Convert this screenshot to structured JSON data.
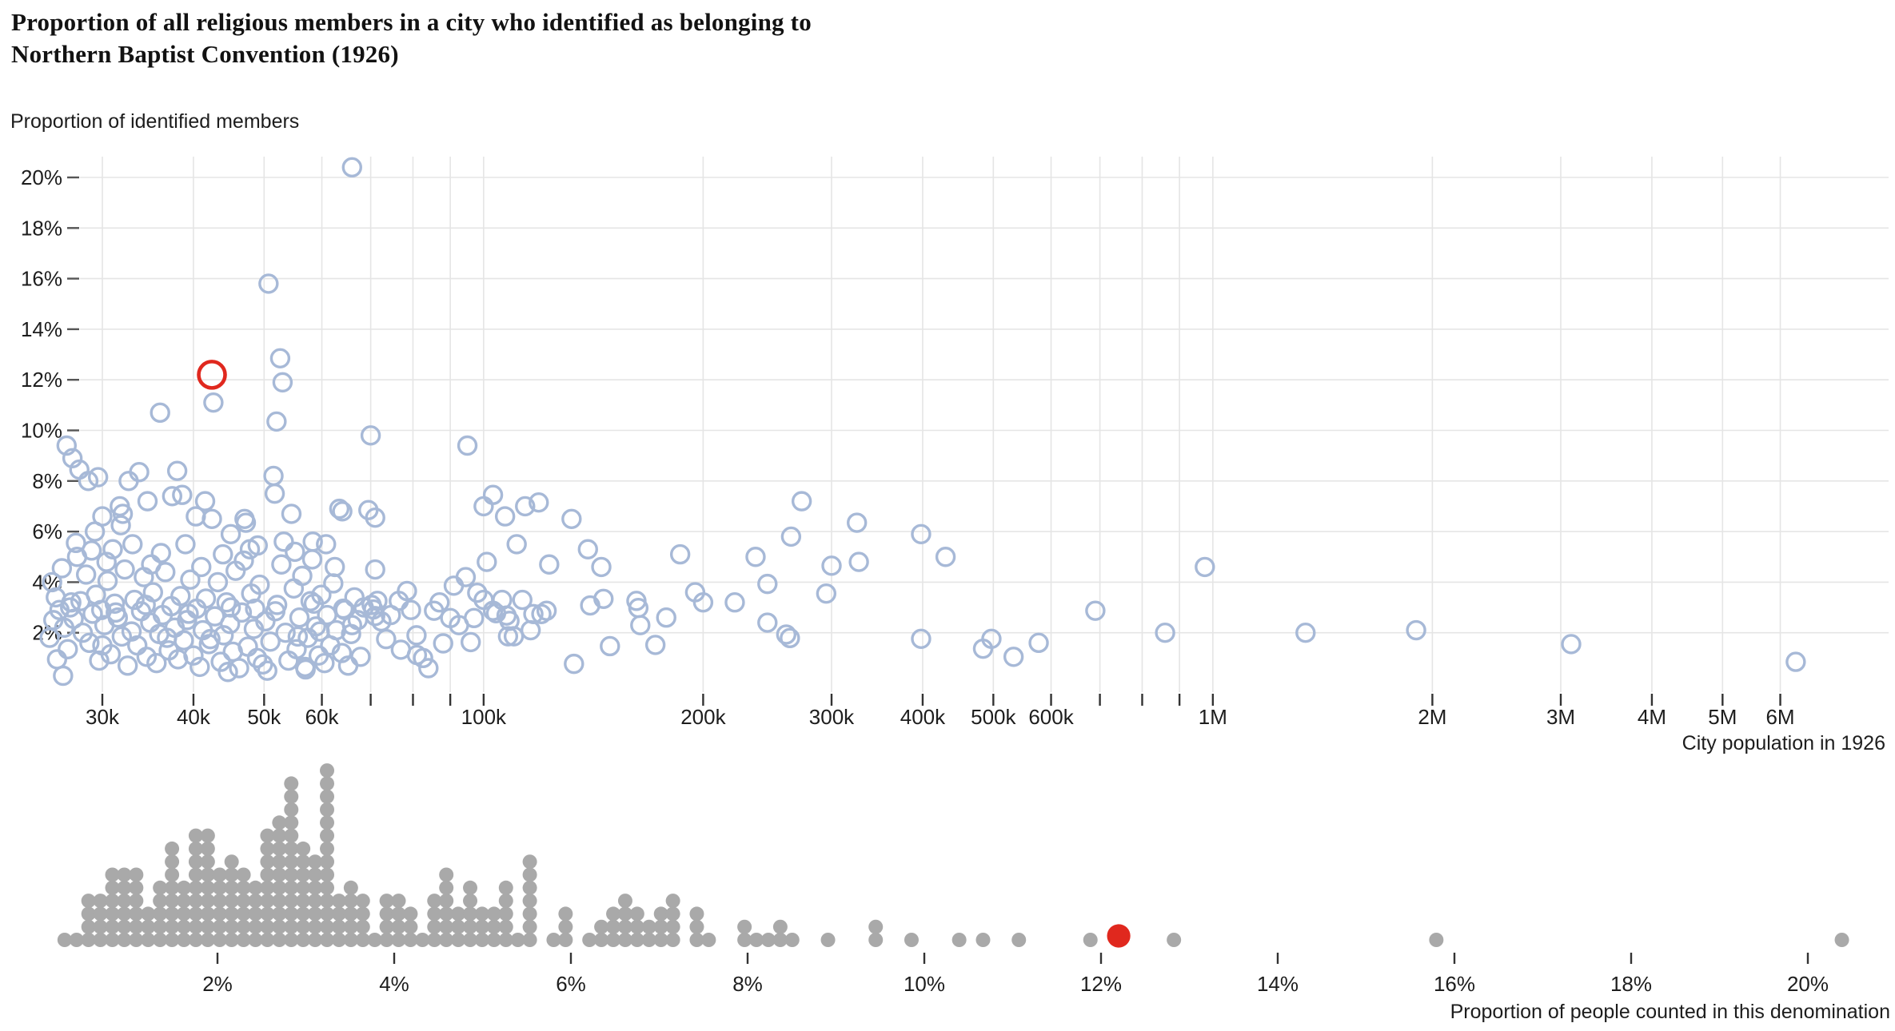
{
  "title": {
    "line1": "Proportion of all religious members in a city who identified as belonging to",
    "line2": "Northern Baptist Convention (1926)"
  },
  "top_chart": {
    "y_axis_label": "Proportion of identified members",
    "x_axis_label": "City population in 1926",
    "y_ticks": [
      {
        "value": 2,
        "label": "2%"
      },
      {
        "value": 4,
        "label": "4%"
      },
      {
        "value": 6,
        "label": "6%"
      },
      {
        "value": 8,
        "label": "8%"
      },
      {
        "value": 10,
        "label": "10%"
      },
      {
        "value": 12,
        "label": "12%"
      },
      {
        "value": 14,
        "label": "14%"
      },
      {
        "value": 16,
        "label": "16%"
      },
      {
        "value": 18,
        "label": "18%"
      },
      {
        "value": 20,
        "label": "20%"
      }
    ],
    "x_ticks": [
      {
        "value": 30000,
        "label": "30k"
      },
      {
        "value": 40000,
        "label": "40k"
      },
      {
        "value": 50000,
        "label": "50k"
      },
      {
        "value": 60000,
        "label": "60k"
      },
      {
        "value": 100000,
        "label": "100k"
      },
      {
        "value": 200000,
        "label": "200k"
      },
      {
        "value": 300000,
        "label": "300k"
      },
      {
        "value": 400000,
        "label": "400k"
      },
      {
        "value": 500000,
        "label": "500k"
      },
      {
        "value": 600000,
        "label": "600k"
      },
      {
        "value": 1000000,
        "label": "1M"
      },
      {
        "value": 2000000,
        "label": "2M"
      },
      {
        "value": 3000000,
        "label": "3M"
      },
      {
        "value": 4000000,
        "label": "4M"
      },
      {
        "value": 5000000,
        "label": "5M"
      },
      {
        "value": 6000000,
        "label": "6M"
      }
    ],
    "x_minor_ticks": [
      70000,
      80000,
      90000,
      700000,
      800000,
      900000
    ]
  },
  "bottom_chart": {
    "x_axis_label": "Proportion of people counted in this denomination",
    "x_ticks": [
      {
        "value": 2,
        "label": "2%"
      },
      {
        "value": 4,
        "label": "4%"
      },
      {
        "value": 6,
        "label": "6%"
      },
      {
        "value": 8,
        "label": "8%"
      },
      {
        "value": 10,
        "label": "10%"
      },
      {
        "value": 12,
        "label": "12%"
      },
      {
        "value": 14,
        "label": "14%"
      },
      {
        "value": 16,
        "label": "16%"
      },
      {
        "value": 18,
        "label": "18%"
      },
      {
        "value": 20,
        "label": "20%"
      }
    ]
  },
  "colors": {
    "point_stroke": "#a7b9d7",
    "highlight": "#e0281e",
    "dot_fill": "#a9a9a9",
    "gridline": "#e5e5e5",
    "tick": "#333333",
    "text": "#1d1d1d",
    "title": "#121212"
  },
  "chart_data": {
    "type": "scatter",
    "description": "Top: scatter of cities, x = city population 1926 (log scale, 25k-7M), y = % of religious members identifying as Northern Baptist Convention (0-20.9%). Bottom: one-dimensional dot-strip histogram of the same proportion values, bin width 0.135%.",
    "x_scale": "log",
    "xlim": [
      25000,
      7000000
    ],
    "ylim": [
      0,
      20.9
    ],
    "highlight": {
      "pop_k": 42.4,
      "prop": 12.2
    },
    "cities_pop_k_prop": [
      [
        66,
        20.4
      ],
      [
        50.7,
        15.8
      ],
      [
        52.6,
        12.85
      ],
      [
        53,
        11.9
      ],
      [
        42.6,
        11.1
      ],
      [
        36,
        10.7
      ],
      [
        52,
        10.35
      ],
      [
        70,
        9.8
      ],
      [
        26.8,
        9.4
      ],
      [
        95,
        9.4
      ],
      [
        27.3,
        8.9
      ],
      [
        27.9,
        8.45
      ],
      [
        38,
        8.4
      ],
      [
        28.7,
        8.0
      ],
      [
        29.6,
        8.15
      ],
      [
        32.6,
        8.0
      ],
      [
        33.7,
        8.35
      ],
      [
        51.5,
        8.2
      ],
      [
        51.7,
        7.5
      ],
      [
        103,
        7.45
      ],
      [
        34.6,
        7.2
      ],
      [
        37.4,
        7.4
      ],
      [
        38.6,
        7.45
      ],
      [
        41.5,
        7.2
      ],
      [
        31.7,
        7.0
      ],
      [
        100,
        7.0
      ],
      [
        114,
        7.0
      ],
      [
        119,
        7.15
      ],
      [
        273,
        7.2
      ],
      [
        32,
        6.7
      ],
      [
        107,
        6.6
      ],
      [
        30,
        6.6
      ],
      [
        31.8,
        6.25
      ],
      [
        29.3,
        6.0
      ],
      [
        54.5,
        6.7
      ],
      [
        63.4,
        6.9
      ],
      [
        64,
        6.8
      ],
      [
        69.5,
        6.85
      ],
      [
        71,
        6.55
      ],
      [
        40.3,
        6.6
      ],
      [
        42.4,
        6.5
      ],
      [
        47,
        6.5
      ],
      [
        47.2,
        6.35
      ],
      [
        45,
        5.9
      ],
      [
        132,
        6.5
      ],
      [
        325,
        6.35
      ],
      [
        264,
        5.8
      ],
      [
        398,
        5.9
      ],
      [
        58.3,
        5.6
      ],
      [
        29,
        5.25
      ],
      [
        31,
        5.3
      ],
      [
        111,
        5.5
      ],
      [
        139,
        5.3
      ],
      [
        186,
        5.1
      ],
      [
        236,
        5.0
      ],
      [
        300,
        4.65
      ],
      [
        327,
        4.8
      ],
      [
        430,
        5.0
      ],
      [
        975,
        4.6
      ],
      [
        123,
        4.7
      ],
      [
        145,
        4.6
      ],
      [
        101,
        4.8
      ],
      [
        71,
        4.5
      ],
      [
        690,
        2.87
      ],
      [
        860,
        2.0
      ],
      [
        1340,
        2.0
      ],
      [
        1900,
        2.1
      ],
      [
        3100,
        1.55
      ],
      [
        6300,
        0.85
      ],
      [
        497,
        1.76
      ],
      [
        484,
        1.37
      ],
      [
        533,
        1.05
      ],
      [
        577,
        1.6
      ],
      [
        398,
        1.76
      ],
      [
        245,
        2.4
      ],
      [
        260,
        1.93
      ],
      [
        263,
        1.79
      ],
      [
        221,
        3.2
      ],
      [
        245,
        3.93
      ],
      [
        295,
        3.55
      ],
      [
        200,
        3.2
      ],
      [
        195,
        3.6
      ],
      [
        162,
        3.26
      ],
      [
        163,
        2.98
      ],
      [
        164,
        2.3
      ],
      [
        149,
        1.47
      ],
      [
        172,
        1.52
      ],
      [
        140,
        3.08
      ],
      [
        146,
        3.34
      ],
      [
        178,
        2.6
      ],
      [
        94.5,
        4.2
      ],
      [
        91,
        3.86
      ],
      [
        78.5,
        3.65
      ],
      [
        98,
        3.58
      ],
      [
        100,
        3.3
      ],
      [
        106,
        3.3
      ],
      [
        113,
        3.3
      ],
      [
        71.5,
        3.26
      ],
      [
        70.6,
        2.92
      ],
      [
        71,
        2.66
      ],
      [
        72.4,
        2.45
      ],
      [
        74.6,
        2.7
      ],
      [
        76.5,
        3.26
      ],
      [
        85.5,
        2.87
      ],
      [
        90,
        2.58
      ],
      [
        97,
        2.58
      ],
      [
        104,
        2.77
      ],
      [
        107.5,
        2.68
      ],
      [
        108.5,
        2.47
      ],
      [
        103,
        2.87
      ],
      [
        117,
        2.74
      ],
      [
        120,
        2.74
      ],
      [
        122,
        2.87
      ],
      [
        116,
        2.1
      ],
      [
        108,
        1.86
      ],
      [
        110,
        1.86
      ],
      [
        80.9,
        1.9
      ],
      [
        77,
        1.33
      ],
      [
        81,
        1.12
      ],
      [
        82.6,
        1.0
      ],
      [
        84,
        0.6
      ],
      [
        88,
        1.58
      ],
      [
        96,
        1.63
      ],
      [
        133,
        0.77
      ],
      [
        25.6,
        4.0
      ],
      [
        25.9,
        3.4
      ],
      [
        26.2,
        2.9
      ],
      [
        26.4,
        4.55
      ],
      [
        26.6,
        2.2
      ],
      [
        26.9,
        1.35
      ],
      [
        27.1,
        3.0
      ],
      [
        27.4,
        2.55
      ],
      [
        27.7,
        5.0
      ],
      [
        28,
        3.25
      ],
      [
        28.2,
        2.0
      ],
      [
        28.5,
        4.3
      ],
      [
        28.8,
        1.6
      ],
      [
        29.1,
        2.75
      ],
      [
        29.4,
        3.5
      ],
      [
        29.7,
        0.9
      ],
      [
        30.2,
        2.3
      ],
      [
        30.5,
        4.05
      ],
      [
        30.8,
        1.15
      ],
      [
        31.2,
        3.15
      ],
      [
        31.5,
        2.6
      ],
      [
        31.9,
        1.85
      ],
      [
        32.2,
        4.5
      ],
      [
        32.5,
        0.7
      ],
      [
        32.9,
        2.05
      ],
      [
        33.2,
        3.3
      ],
      [
        33.5,
        1.5
      ],
      [
        33.9,
        2.85
      ],
      [
        34.2,
        4.2
      ],
      [
        34.5,
        1.05
      ],
      [
        34.9,
        2.4
      ],
      [
        35.2,
        3.6
      ],
      [
        35.6,
        0.8
      ],
      [
        35.9,
        1.95
      ],
      [
        36.3,
        2.7
      ],
      [
        36.6,
        4.4
      ],
      [
        37,
        1.3
      ],
      [
        37.3,
        3.05
      ],
      [
        37.7,
        2.2
      ],
      [
        38.1,
        0.95
      ],
      [
        38.4,
        3.45
      ],
      [
        38.8,
        1.7
      ],
      [
        39.2,
        2.5
      ],
      [
        39.6,
        4.1
      ],
      [
        40,
        1.1
      ],
      [
        40.4,
        2.95
      ],
      [
        40.8,
        0.65
      ],
      [
        41.2,
        2.1
      ],
      [
        41.6,
        3.35
      ],
      [
        42,
        1.55
      ],
      [
        42.8,
        2.65
      ],
      [
        43.2,
        4.0
      ],
      [
        43.6,
        0.85
      ],
      [
        44,
        1.9
      ],
      [
        44.4,
        3.2
      ],
      [
        44.9,
        2.35
      ],
      [
        45.3,
        1.25
      ],
      [
        45.7,
        4.45
      ],
      [
        46.2,
        0.6
      ],
      [
        46.6,
        2.8
      ],
      [
        47.5,
        1.45
      ],
      [
        48,
        3.55
      ],
      [
        48.4,
        2.15
      ],
      [
        48.9,
        1.0
      ],
      [
        49.3,
        3.9
      ],
      [
        49.8,
        0.75
      ],
      [
        50.2,
        2.45
      ],
      [
        51,
        1.65
      ],
      [
        52.1,
        3.1
      ],
      [
        53.5,
        2.0
      ],
      [
        54,
        0.9
      ],
      [
        54.9,
        3.75
      ],
      [
        55.4,
        1.35
      ],
      [
        55.9,
        2.6
      ],
      [
        56.4,
        4.25
      ],
      [
        56.9,
        0.65
      ],
      [
        57.4,
        1.8
      ],
      [
        57.9,
        3.25
      ],
      [
        58.9,
        2.25
      ],
      [
        59.4,
        1.1
      ],
      [
        59.9,
        3.5
      ],
      [
        60.5,
        0.8
      ],
      [
        61,
        2.7
      ],
      [
        61.6,
        1.5
      ],
      [
        62.2,
        3.95
      ],
      [
        62.8,
        2.1
      ],
      [
        63.9,
        1.2
      ],
      [
        64.5,
        2.9
      ],
      [
        65.2,
        0.7
      ],
      [
        65.8,
        1.95
      ],
      [
        66.5,
        3.4
      ],
      [
        67.2,
        2.5
      ],
      [
        67.8,
        1.05
      ],
      [
        68.5,
        3.0
      ],
      [
        25.4,
        1.8
      ],
      [
        25.7,
        2.5
      ],
      [
        26,
        0.95
      ],
      [
        30,
        1.5
      ],
      [
        41,
        4.6
      ],
      [
        43.9,
        5.1
      ],
      [
        46.9,
        4.85
      ],
      [
        49,
        5.45
      ],
      [
        52.8,
        4.7
      ],
      [
        55.1,
        5.2
      ],
      [
        58.2,
        4.9
      ],
      [
        60.8,
        5.5
      ],
      [
        36.1,
        5.15
      ],
      [
        33,
        5.5
      ],
      [
        30.4,
        4.8
      ],
      [
        27.6,
        5.55
      ],
      [
        44.6,
        0.45
      ],
      [
        50.5,
        0.5
      ],
      [
        57,
        0.55
      ],
      [
        39,
        5.5
      ],
      [
        35,
        4.7
      ],
      [
        62.5,
        4.6
      ],
      [
        47.8,
        5.3
      ],
      [
        53.2,
        5.6
      ],
      [
        29.9,
        2.9
      ],
      [
        34.4,
        3.1
      ],
      [
        39.4,
        2.75
      ],
      [
        45,
        3.0
      ],
      [
        51.8,
        2.85
      ],
      [
        58.5,
        3.15
      ],
      [
        64.2,
        2.95
      ],
      [
        70.2,
        3.1
      ],
      [
        36.8,
        1.8
      ],
      [
        42.2,
        1.75
      ],
      [
        48.6,
        2.95
      ],
      [
        55.6,
        1.85
      ],
      [
        31.3,
        2.8
      ],
      [
        27.2,
        3.2
      ],
      [
        59.6,
        2.05
      ],
      [
        66,
        2.3
      ],
      [
        73.5,
        1.75
      ],
      [
        79.5,
        2.9
      ],
      [
        87,
        3.2
      ],
      [
        92.5,
        2.3
      ],
      [
        26.5,
        0.3
      ]
    ],
    "bottom_strip": {
      "type": "dot-histogram",
      "values_source": "same cities' proportion values",
      "bin_width_pct": 0.135,
      "xlabel": "Proportion of people counted in this denomination",
      "xlim": [
        0,
        20.6
      ]
    }
  }
}
